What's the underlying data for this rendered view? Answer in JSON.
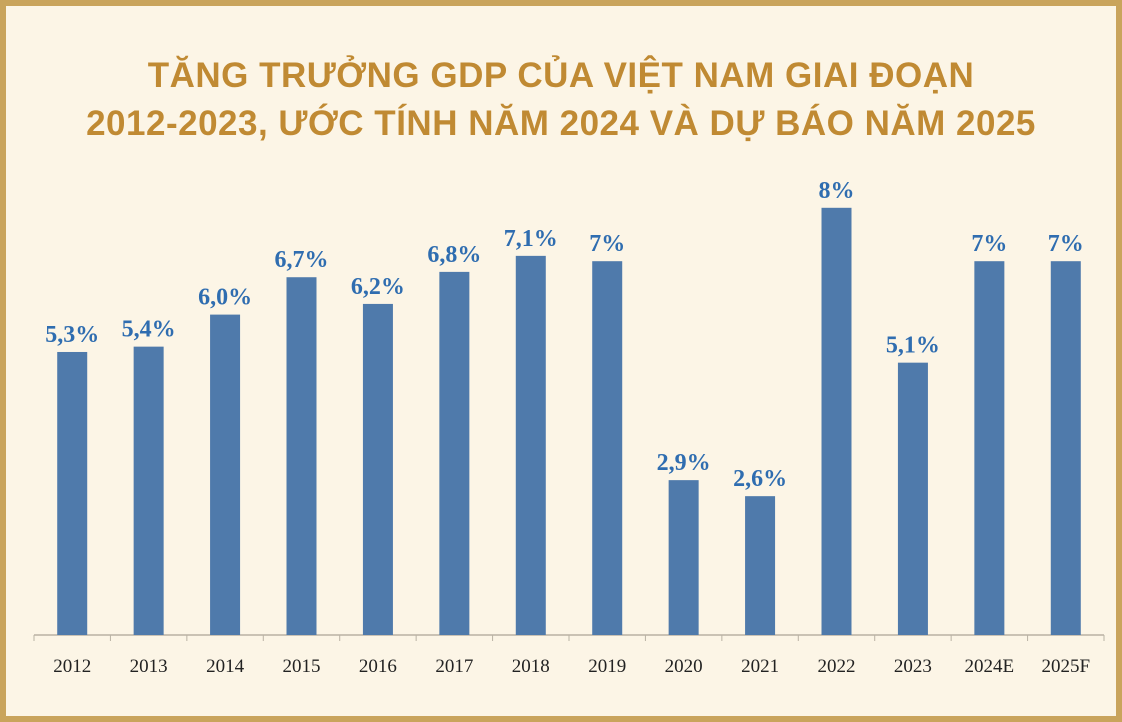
{
  "chart_data": {
    "type": "bar",
    "title_line1": "TĂNG TRƯỞNG GDP CỦA VIỆT NAM GIAI ĐOẠN",
    "title_line2": "2012-2023, ƯỚC TÍNH NĂM 2024 VÀ DỰ BÁO NĂM 2025",
    "xlabel": "",
    "ylabel": "",
    "categories": [
      "2012",
      "2013",
      "2014",
      "2015",
      "2016",
      "2017",
      "2018",
      "2019",
      "2020",
      "2021",
      "2022",
      "2023",
      "2024E",
      "2025F"
    ],
    "values": [
      5.3,
      5.4,
      6.0,
      6.7,
      6.2,
      6.8,
      7.1,
      7.0,
      2.9,
      2.6,
      8.0,
      5.1,
      7.0,
      7.0
    ],
    "data_labels": [
      "5,3%",
      "5,4%",
      "6,0%",
      "6,7%",
      "6,2%",
      "6,8%",
      "7,1%",
      "7%",
      "2,9%",
      "2,6%",
      "8%",
      "5,1%",
      "7%",
      "7%"
    ],
    "ylim": [
      0,
      8
    ],
    "grid": false,
    "legend": "none",
    "colors": {
      "bar": "#4f7aab",
      "label": "#2f6db0",
      "title": "#c08a33",
      "background": "#fcf5e6",
      "border": "#c9a45c"
    }
  }
}
